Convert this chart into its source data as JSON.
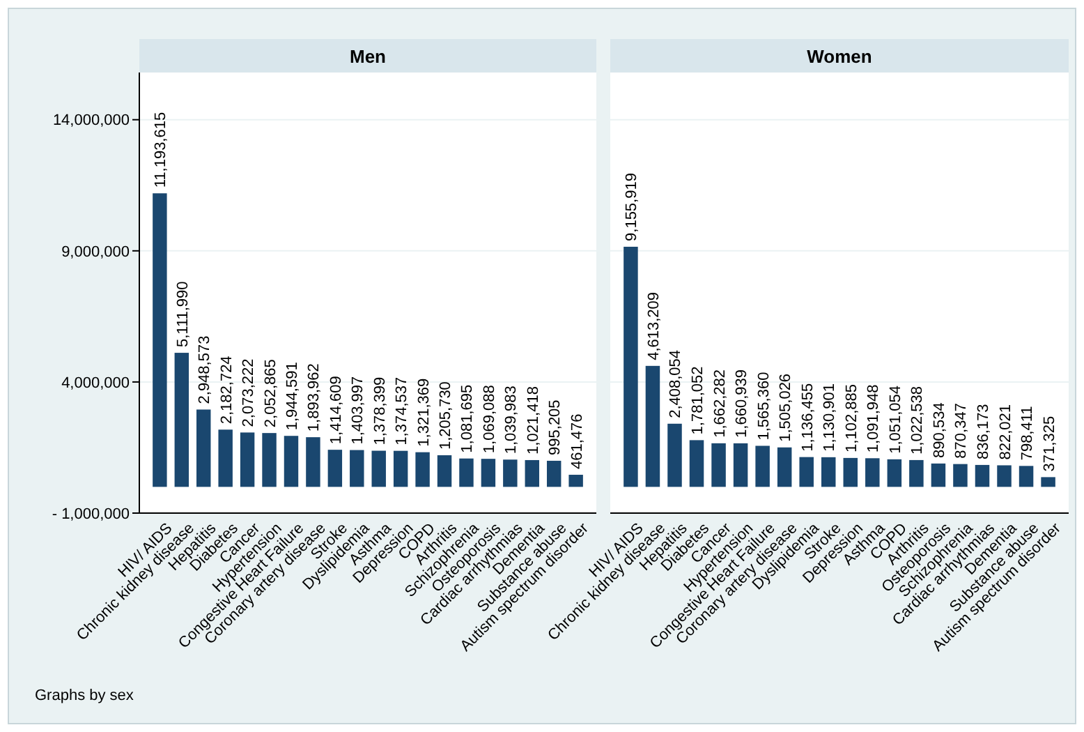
{
  "chart_data": [
    {
      "type": "bar",
      "title": "Men",
      "categories": [
        "HIV/ AIDS",
        "Chronic kidney disease",
        "Hepatitis",
        "Diabetes",
        "Cancer",
        "Hypertension",
        "Congestive Heart Failure",
        "Coronary artery disease",
        "Stroke",
        "Dyslipidemia",
        "Asthma",
        "Depression",
        "COPD",
        "Arthritis",
        "Schizophrenia",
        "Osteoporosis",
        "Cardiac arrhythmias",
        "Dementia",
        "Substance abuse",
        "Autism spectrum disorder"
      ],
      "values": [
        11193615,
        5111990,
        2948573,
        2182724,
        2073222,
        2052865,
        1944591,
        1893962,
        1414609,
        1403997,
        1378399,
        1374537,
        1321369,
        1205730,
        1081695,
        1069088,
        1039983,
        1021418,
        995205,
        461476
      ],
      "value_labels": [
        "11,193,615",
        "5,111,990",
        "2,948,573",
        "2,182,724",
        "2,073,222",
        "2,052,865",
        "1,944,591",
        "1,893,962",
        "1,414,609",
        "1,403,997",
        "1,378,399",
        "1,374,537",
        "1,321,369",
        "1,205,730",
        "1,081,695",
        "1,069,088",
        "1,039,983",
        "1,021,418",
        "995,205",
        "461,476"
      ],
      "color": "#1a476f",
      "ylim": [
        -1000000,
        15800000
      ],
      "yticks": [
        {
          "value": -1000000,
          "label": "- 1,000,000"
        },
        {
          "value": 4000000,
          "label": "4,000,000"
        },
        {
          "value": 9000000,
          "label": "9,000,000"
        },
        {
          "value": 14000000,
          "label": "14,000,000"
        }
      ],
      "grid": "y",
      "annotations": [
        "Graphs by sex"
      ]
    },
    {
      "type": "bar",
      "title": "Women",
      "categories": [
        "HIV/ AIDS",
        "Chronic kidney disease",
        "Hepatitis",
        "Diabetes",
        "Cancer",
        "Hypertension",
        "Congestive Heart Failure",
        "Coronary artery disease",
        "Dyslipidemia",
        "Stroke",
        "Depression",
        "Asthma",
        "COPD",
        "Arthritis",
        "Osteoporosis",
        "Schizophrenia",
        "Cardiac arrhythmias",
        "Dementia",
        "Substance abuse",
        "Autism spectrum disorder"
      ],
      "values": [
        9155919,
        4613209,
        2408054,
        1781052,
        1662282,
        1660939,
        1565360,
        1505026,
        1136455,
        1130901,
        1102885,
        1091948,
        1051054,
        1022538,
        890534,
        870347,
        836173,
        822021,
        798411,
        371325
      ],
      "value_labels": [
        "9,155,919",
        "4,613,209",
        "2,408,054",
        "1,781,052",
        "1,662,282",
        "1,660,939",
        "1,565,360",
        "1,505,026",
        "1,136,455",
        "1,130,901",
        "1,102,885",
        "1,091,948",
        "1,051,054",
        "1,022,538",
        "890,534",
        "870,347",
        "836,173",
        "822,021",
        "798,411",
        "371,325"
      ],
      "color": "#1a476f",
      "ylim": [
        -1000000,
        15800000
      ],
      "yticks": [
        -1000000,
        4000000,
        9000000,
        14000000
      ],
      "grid": "y",
      "tick_labels": "x"
    }
  ]
}
